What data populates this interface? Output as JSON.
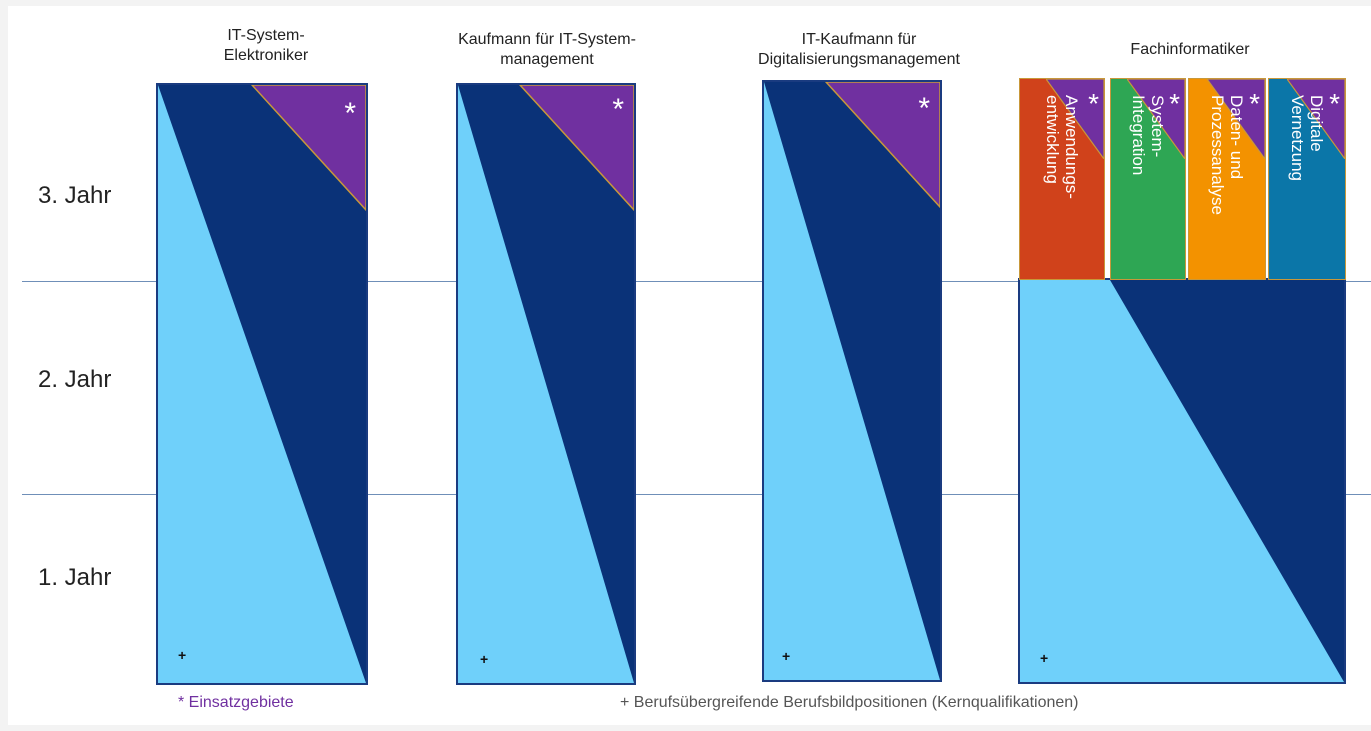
{
  "years": [
    "3. Jahr",
    "2. Jahr",
    "1. Jahr"
  ],
  "columns": [
    {
      "title_line1": "IT-System-",
      "title_line2": "Elektroniker",
      "star": "*",
      "plus": "+"
    },
    {
      "title_line1": "Kaufmann für IT-System-",
      "title_line2": "management",
      "star": "*",
      "plus": "+"
    },
    {
      "title_line1": "IT-Kaufmann für",
      "title_line2": "Digitalisierungsmanagement",
      "star": "*",
      "plus": "+"
    },
    {
      "title_line1": "Fachinformatiker",
      "title_line2": "",
      "star": "",
      "plus": "+"
    }
  ],
  "specializations": [
    {
      "label": "Anwendungs-\nentwicklung",
      "star": "*",
      "color": "#d0421b"
    },
    {
      "label": "System-\nIntegration",
      "star": "*",
      "color": "#2ea654"
    },
    {
      "label": "Daten- und\nProzessanalyse",
      "star": "*",
      "color": "#f39200"
    },
    {
      "label": "Digitale\nVernetzung",
      "star": "*",
      "color": "#0b76a8"
    }
  ],
  "legend": {
    "einsatz": "* Einsatzgebiete",
    "kern": "+ Berufsübergreifende Berufsbildpositionen (Kernqualifikationen)"
  },
  "colors": {
    "light": "#6fd0fa",
    "dark": "#0a3278",
    "purple": "#7030a0",
    "border": "#1a3b80"
  }
}
